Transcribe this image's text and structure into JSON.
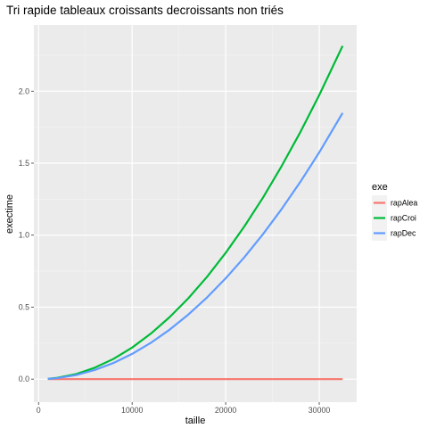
{
  "chart_data": {
    "type": "line",
    "title": "Tri rapide tableaux croissants decroissants non triés",
    "xlabel": "taille",
    "ylabel": "exectime",
    "xlim": [
      -500,
      34000
    ],
    "ylim": [
      -0.16,
      2.46
    ],
    "x_ticks": [
      0,
      10000,
      20000,
      30000
    ],
    "x_tick_labels": [
      "0",
      "10000",
      "20000",
      "30000"
    ],
    "y_ticks": [
      0.0,
      0.5,
      1.0,
      1.5,
      2.0
    ],
    "y_tick_labels": [
      "0.0",
      "0.5",
      "1.0",
      "1.5",
      "2.0"
    ],
    "grid": true,
    "legend": {
      "title": "exe",
      "position": "right"
    },
    "x": [
      1000,
      2000,
      4000,
      6000,
      8000,
      10000,
      12000,
      14000,
      16000,
      18000,
      20000,
      22000,
      24000,
      26000,
      28000,
      30000,
      32500
    ],
    "series": [
      {
        "name": "rapAlea",
        "color": "#F8766D",
        "values": [
          0.0,
          0.0,
          0.0,
          0.0,
          0.0,
          0.0,
          0.0,
          0.0,
          0.0,
          0.0,
          0.0,
          0.0,
          0.0,
          0.0,
          0.0,
          0.0,
          0.0
        ]
      },
      {
        "name": "rapCroi",
        "color": "#00BA38",
        "values": [
          0.002,
          0.009,
          0.035,
          0.079,
          0.14,
          0.219,
          0.316,
          0.43,
          0.561,
          0.71,
          0.877,
          1.061,
          1.262,
          1.482,
          1.718,
          1.973,
          2.315
        ]
      },
      {
        "name": "rapDec",
        "color": "#619CFF",
        "values": [
          0.002,
          0.007,
          0.028,
          0.063,
          0.112,
          0.175,
          0.252,
          0.343,
          0.448,
          0.567,
          0.7,
          0.847,
          1.008,
          1.183,
          1.372,
          1.575,
          1.849
        ]
      }
    ]
  }
}
